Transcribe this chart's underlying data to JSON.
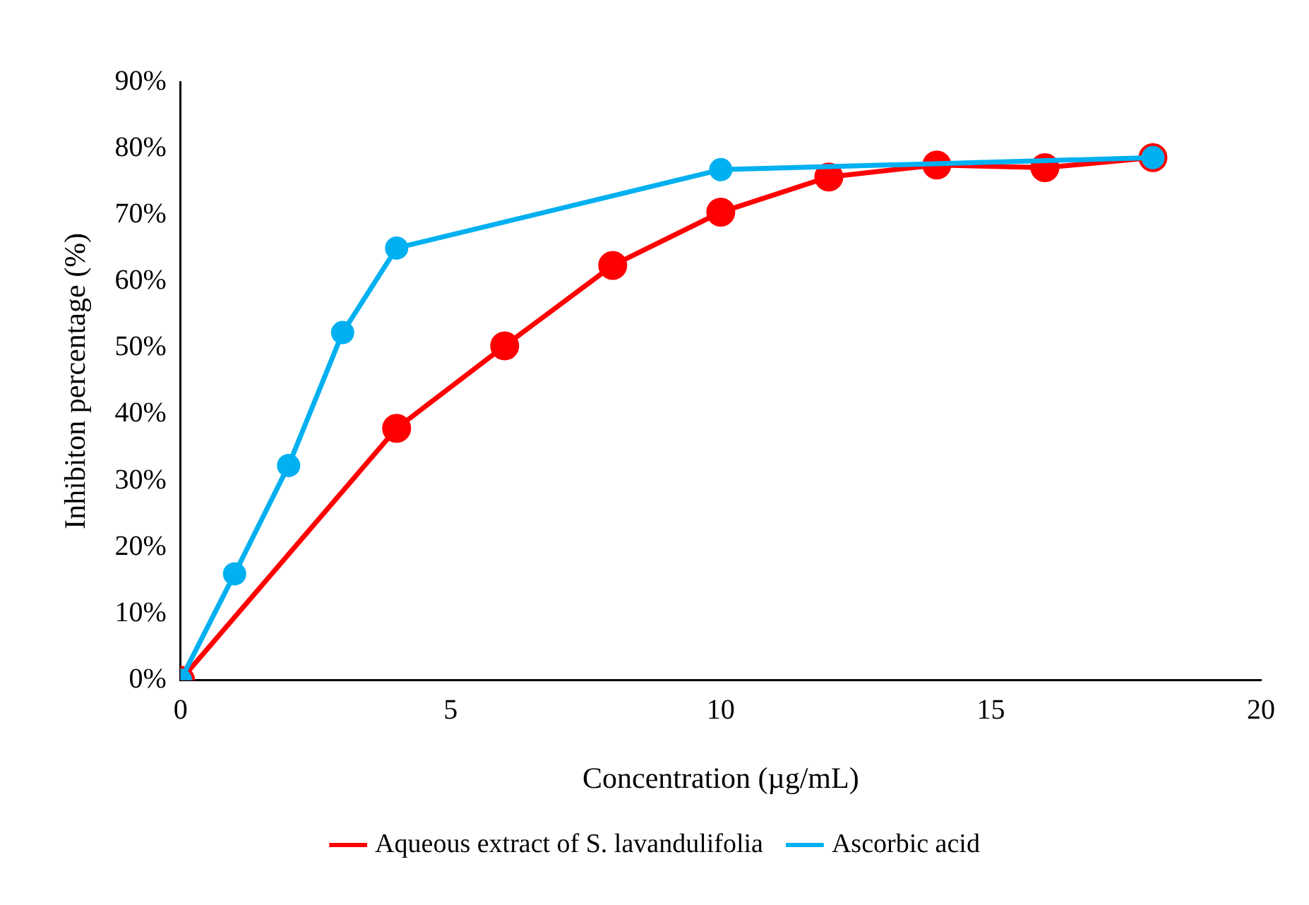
{
  "chart_data": {
    "type": "line",
    "xlabel": "Concentration (µg/mL)",
    "ylabel": "Inhibiton percentage (%)",
    "xlim": [
      0,
      20
    ],
    "xticks": [
      0,
      5,
      10,
      15,
      20
    ],
    "ylim": [
      0,
      90
    ],
    "yticks": [
      {
        "value": 0,
        "label": "0%"
      },
      {
        "value": 10,
        "label": "10%"
      },
      {
        "value": 20,
        "label": "20%"
      },
      {
        "value": 30,
        "label": "30%"
      },
      {
        "value": 40,
        "label": "40%"
      },
      {
        "value": 50,
        "label": "50%"
      },
      {
        "value": 60,
        "label": "60%"
      },
      {
        "value": 70,
        "label": "70%"
      },
      {
        "value": 80,
        "label": "80%"
      },
      {
        "value": 90,
        "label": "90%"
      }
    ],
    "series": [
      {
        "name": "Aqueous extract of S. lavandulifolia",
        "color": "#ff0000",
        "x": [
          0,
          4,
          6,
          8,
          10,
          12,
          14,
          16,
          18
        ],
        "values": [
          0,
          37.9,
          50.3,
          62.4,
          70.4,
          75.7,
          77.5,
          77.1,
          78.6
        ]
      },
      {
        "name": "Ascorbic acid",
        "color": "#00b0f0",
        "x": [
          0,
          1,
          2,
          3,
          4,
          10,
          18
        ],
        "values": [
          0,
          16.0,
          32.3,
          52.3,
          65.0,
          76.8,
          78.6
        ]
      }
    ],
    "grid": false,
    "legend": "bottom",
    "marker": "circle",
    "line_style": "solid"
  }
}
